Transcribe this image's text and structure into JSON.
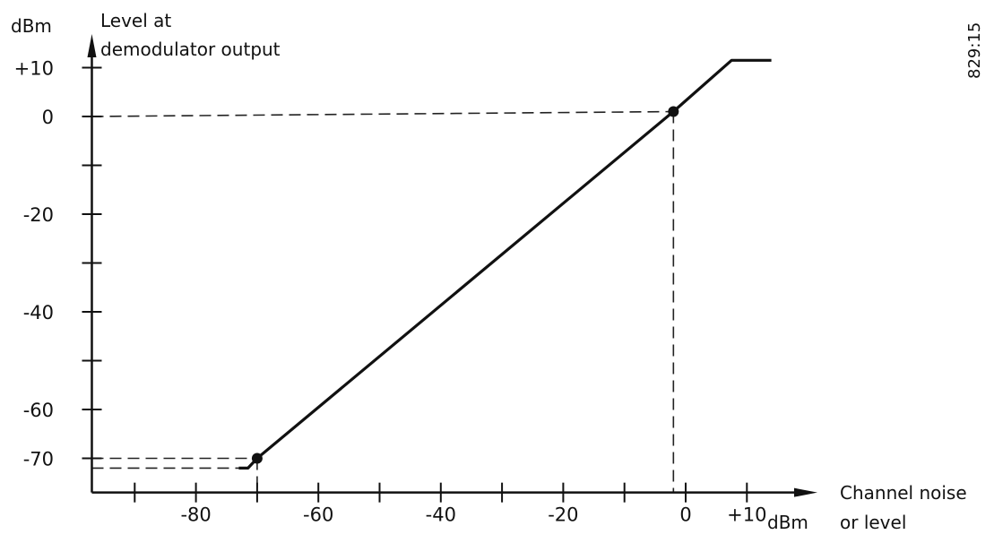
{
  "chart_data": {
    "type": "line",
    "title": "",
    "ylabel_unit": "dBm",
    "ylabel_lines": [
      "Level at",
      "demodulator output"
    ],
    "xlabel_unit": "dBm",
    "xlabel_lines": [
      "Channel noise",
      "or level"
    ],
    "figure_code": "829:15",
    "x_range": [
      -97,
      12
    ],
    "y_range": [
      -77,
      13
    ],
    "x_ticks": [
      -90,
      -80,
      -70,
      -60,
      -50,
      -40,
      -30,
      -20,
      -10,
      0,
      10
    ],
    "x_tick_labels": [
      {
        "value": -80,
        "text": "-80"
      },
      {
        "value": -60,
        "text": "-60"
      },
      {
        "value": -40,
        "text": "-40"
      },
      {
        "value": -20,
        "text": "-20"
      },
      {
        "value": 0,
        "text": "0"
      },
      {
        "value": 10,
        "text": "+10"
      }
    ],
    "y_ticks": [
      10,
      0,
      -10,
      -20,
      -30,
      -40,
      -50,
      -60,
      -70
    ],
    "y_tick_labels": [
      {
        "value": 10,
        "text": "+10"
      },
      {
        "value": 0,
        "text": "0"
      },
      {
        "value": -20,
        "text": "-20"
      },
      {
        "value": -40,
        "text": "-40"
      },
      {
        "value": -60,
        "text": "-60"
      },
      {
        "value": -70,
        "text": "-70"
      }
    ],
    "series": [
      {
        "points": [
          [
            -73,
            -72
          ],
          [
            -71.5,
            -72
          ],
          [
            -70,
            -70
          ],
          [
            -2,
            1
          ],
          [
            7.5,
            11.5
          ],
          [
            14,
            11.5
          ]
        ]
      }
    ],
    "marked_points": [
      [
        -70,
        -70
      ],
      [
        -2,
        1
      ]
    ],
    "reference_lines": [
      {
        "points": [
          [
            -97,
            0
          ],
          [
            -2,
            1
          ]
        ]
      },
      {
        "points": [
          [
            -2,
            1
          ],
          [
            -2,
            -77
          ]
        ]
      },
      {
        "points": [
          [
            -97,
            -70
          ],
          [
            -70,
            -70
          ]
        ]
      },
      {
        "points": [
          [
            -70,
            -70
          ],
          [
            -70,
            -77
          ]
        ]
      },
      {
        "points": [
          [
            -97,
            -72
          ],
          [
            -73,
            -72
          ]
        ]
      }
    ],
    "grid": false,
    "legend": "none"
  }
}
